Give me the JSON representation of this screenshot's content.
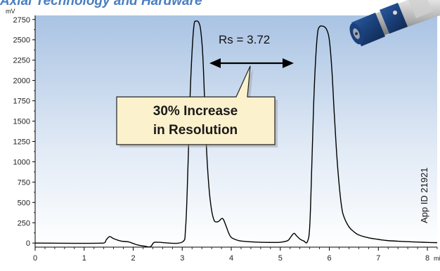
{
  "header": {
    "title": "Axial Technology and Hardware"
  },
  "callout": {
    "line1": "30% Increase",
    "line2": "in Resolution"
  },
  "annotation": {
    "rs_label": "Rs = 3.72"
  },
  "app_id": "App ID 21921",
  "colors": {
    "plot_bg_top": "#a9c3e3",
    "plot_bg_bottom": "#ffffff",
    "title": "#4a7ec0",
    "callout_fill": "#fbf1cc",
    "trace": "#000000"
  },
  "icons": [
    "column-image"
  ],
  "chart_data": {
    "type": "line",
    "title": "",
    "xlabel": "min",
    "ylabel": "mV",
    "xlim": [
      0,
      8.2
    ],
    "ylim": [
      -50,
      2800
    ],
    "x_ticks": [
      0,
      1,
      2,
      3,
      4,
      5,
      6,
      7,
      8
    ],
    "y_ticks": [
      0,
      250,
      500,
      750,
      1000,
      1250,
      1500,
      1750,
      2000,
      2250,
      2500,
      2750
    ],
    "grid": false,
    "series": [
      {
        "x": [
          0,
          1.4,
          1.45,
          1.52,
          1.6,
          1.75,
          1.9,
          2.0,
          2.1,
          2.25,
          2.35,
          2.42,
          2.5,
          3.0,
          3.07,
          3.12,
          3.16,
          3.2,
          3.24,
          3.28,
          3.34,
          3.38,
          3.42,
          3.46,
          3.5,
          3.55,
          3.6,
          3.65,
          3.7,
          3.75,
          3.8,
          3.84,
          3.9,
          3.95,
          4.0,
          4.1,
          4.2,
          4.4,
          4.6,
          4.8,
          5.0,
          5.15,
          5.22,
          5.28,
          5.33,
          5.4,
          5.48,
          5.55,
          5.6,
          5.64,
          5.68,
          5.72,
          5.76,
          5.8,
          5.85,
          5.9,
          5.95,
          6.0,
          6.05,
          6.1,
          6.15,
          6.2,
          6.25,
          6.3,
          6.4,
          6.5,
          6.6,
          6.8,
          7.0,
          7.2,
          7.5,
          7.8,
          8.0,
          8.2
        ],
        "y": [
          0,
          0,
          40,
          80,
          55,
          25,
          15,
          -5,
          -25,
          -40,
          -45,
          5,
          10,
          12,
          200,
          1000,
          1800,
          2350,
          2680,
          2730,
          2710,
          2600,
          2300,
          1700,
          1100,
          650,
          400,
          280,
          260,
          270,
          300,
          290,
          200,
          120,
          70,
          40,
          25,
          15,
          10,
          8,
          10,
          30,
          80,
          120,
          90,
          50,
          25,
          15,
          200,
          900,
          1700,
          2250,
          2580,
          2660,
          2670,
          2660,
          2620,
          2500,
          2150,
          1600,
          1100,
          720,
          450,
          320,
          200,
          140,
          100,
          65,
          45,
          30,
          20,
          12,
          8,
          5
        ]
      }
    ]
  }
}
